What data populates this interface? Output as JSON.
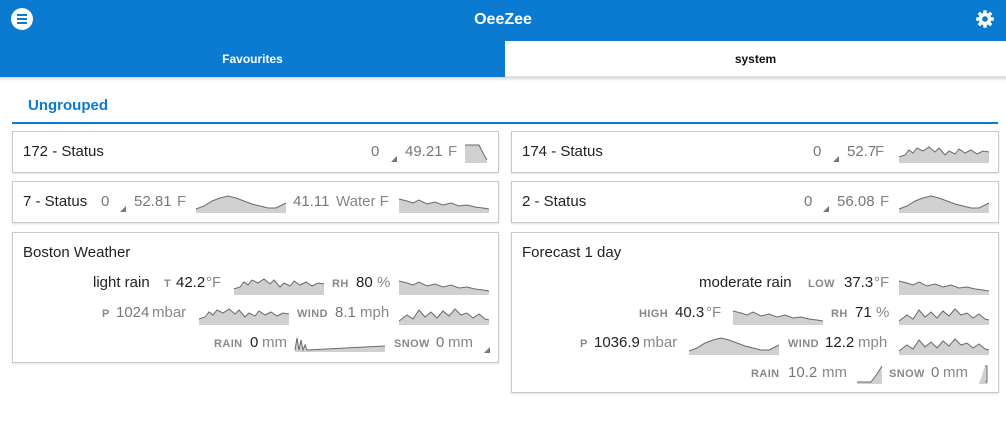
{
  "app": {
    "title": "OeeZee",
    "tabs": [
      "Favourites",
      "system"
    ],
    "group": "Ungrouped",
    "colors": {
      "accent": "#0a7bd0",
      "spark_fill": "#d0d0d0",
      "spark_line": "#6a6a6a"
    },
    "icons": {
      "menu": "hamburger-menu-icon",
      "settings": "gear-icon"
    }
  },
  "status172": {
    "name": "172 - Status",
    "value": "0",
    "temp": "49.21",
    "unit": "F"
  },
  "status174": {
    "name": "174 - Status",
    "value": "0",
    "temp": "52.7",
    "unit": "F"
  },
  "status7": {
    "name": "7 - Status",
    "value": "0",
    "temp": "52.81",
    "unit": "F",
    "water": "41.11",
    "water_unit": "Water F"
  },
  "status2": {
    "name": "2 - Status",
    "value": "0",
    "temp": "56.08",
    "unit": "F"
  },
  "boston": {
    "name": "Boston Weather",
    "desc": "light rain",
    "t_label": "T",
    "t_value": "42.2",
    "t_unit": "°F",
    "rh_label": "RH",
    "rh_value": "80",
    "rh_unit": "%",
    "p_label": "P",
    "p_value": "1024",
    "p_unit": "mbar",
    "wind_label": "WIND",
    "wind_value": "8.1",
    "wind_unit": "mph",
    "rain_label": "RAIN",
    "rain_value": "0",
    "rain_unit": "mm",
    "snow_label": "SNOW",
    "snow_value": "0",
    "snow_unit": "mm"
  },
  "forecast": {
    "name": "Forecast 1 day",
    "desc": "moderate rain",
    "low_label": "LOW",
    "low_value": "37.3",
    "low_unit": "°F",
    "high_label": "HIGH",
    "high_value": "40.3",
    "high_unit": "°F",
    "rh_label": "RH",
    "rh_value": "71",
    "rh_unit": "%",
    "p_label": "P",
    "p_value": "1036.9",
    "p_unit": "mbar",
    "wind_label": "WIND",
    "wind_value": "12.2",
    "wind_unit": "mph",
    "rain_label": "RAIN",
    "rain_value": "10.2",
    "rain_unit": "mm",
    "snow_label": "SNOW",
    "snow_value": "0",
    "snow_unit": "mm"
  }
}
